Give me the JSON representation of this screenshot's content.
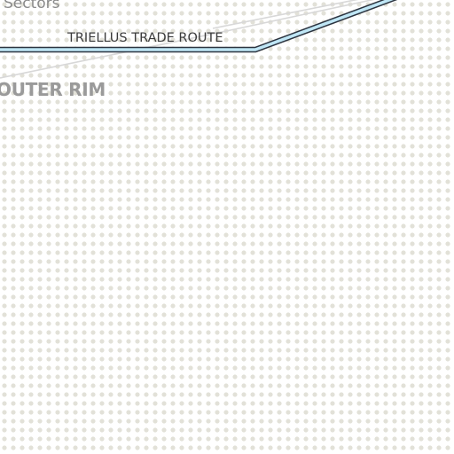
{
  "map": {
    "labels": {
      "sector_label": "Sectors",
      "trade_route_label": "TRIELLUS TRADE ROUTE",
      "region_label": "OUTER RIM"
    },
    "colors": {
      "background": "#ffffff",
      "dot_grid": "#e2e1d8",
      "trade_route_fill": "#bfe6f5",
      "trade_route_outline": "#2c3440",
      "sector_border": "#d8d8d8",
      "sector_label": "#8a8a8a",
      "trade_route_label": "#3a3a3a",
      "region_label": "#9a9a9a"
    }
  }
}
